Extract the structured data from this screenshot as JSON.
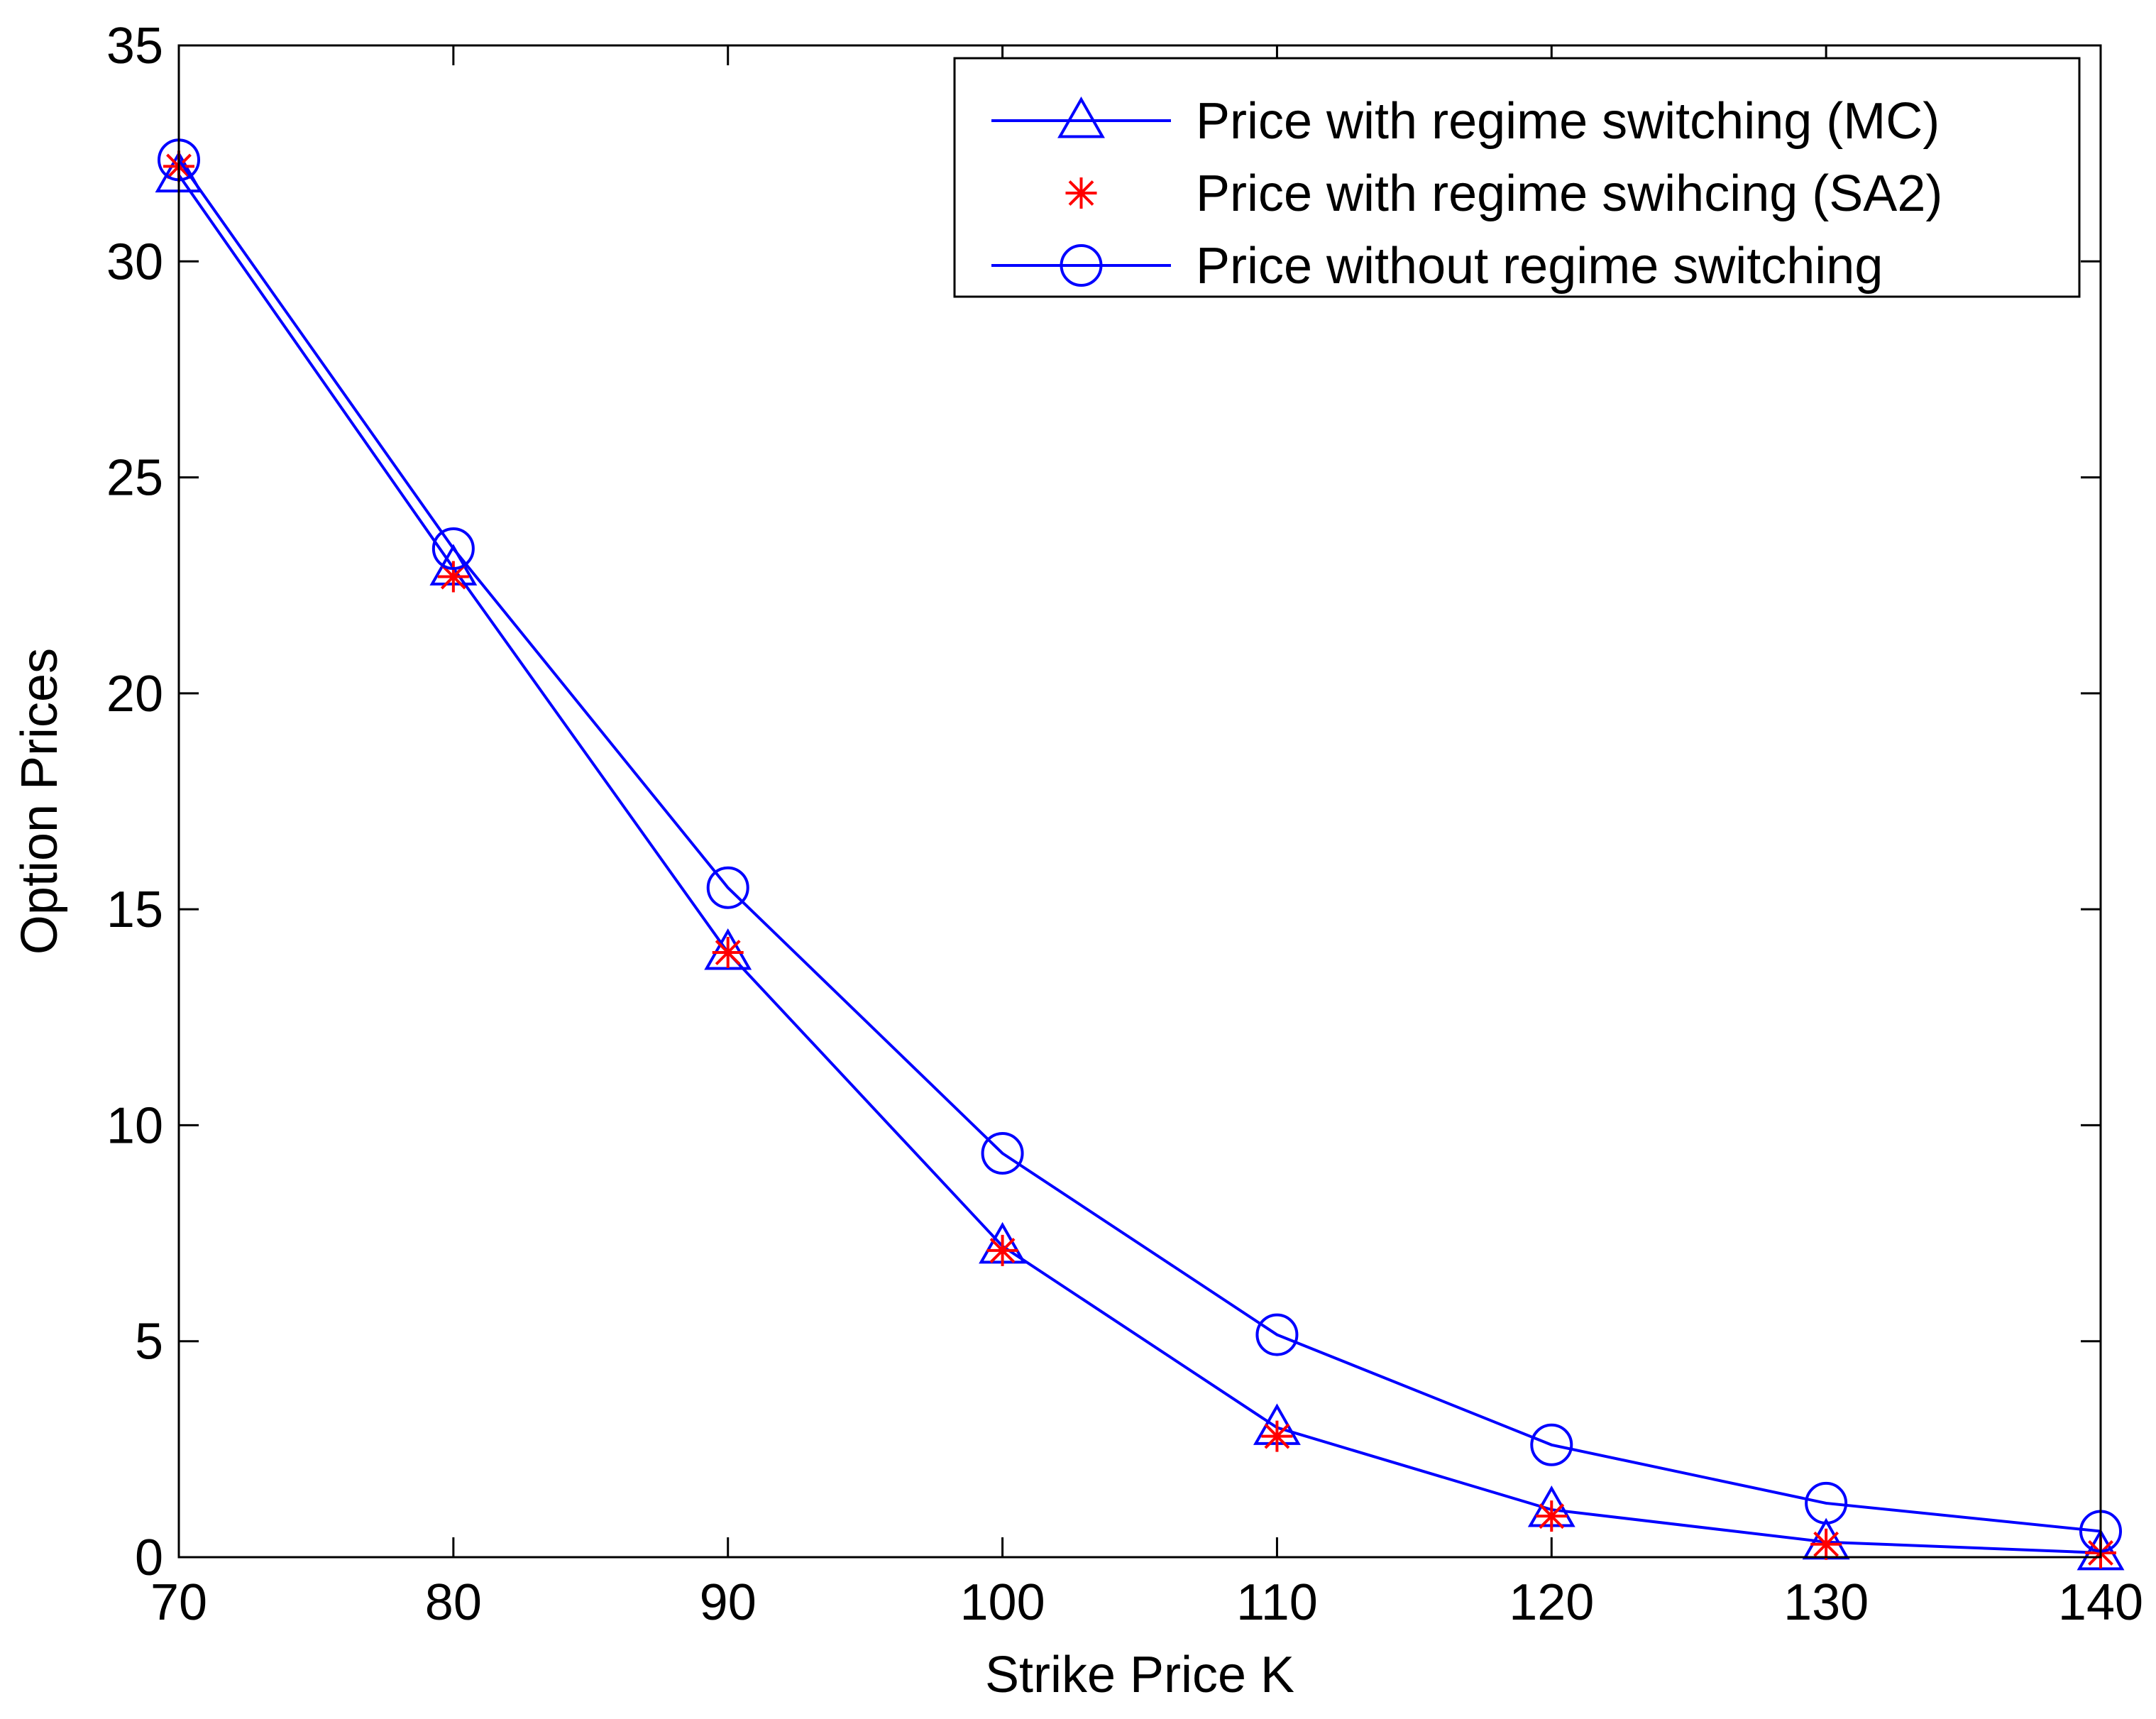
{
  "chart_data": {
    "type": "line",
    "title": "",
    "xlabel": "Strike Price K",
    "ylabel": "Option Prices",
    "xlim": [
      70,
      140
    ],
    "ylim": [
      0,
      35
    ],
    "xticks": [
      70,
      80,
      90,
      100,
      110,
      120,
      130,
      140
    ],
    "yticks": [
      0,
      5,
      10,
      15,
      20,
      25,
      30,
      35
    ],
    "grid": false,
    "legend_position": "top-right",
    "x": [
      70,
      80,
      90,
      100,
      110,
      120,
      130,
      140
    ],
    "series": [
      {
        "name": "Price with regime switching (MC)",
        "color": "#0000ff",
        "marker": "triangle",
        "line": true,
        "values": [
          32.0,
          22.9,
          14.0,
          7.2,
          3.0,
          1.1,
          0.35,
          0.1
        ]
      },
      {
        "name": "Price with regime swihcing (SA2)",
        "color": "#ff0000",
        "marker": "asterisk",
        "line": false,
        "values": [
          32.2,
          22.7,
          14.0,
          7.1,
          2.8,
          0.95,
          0.3,
          0.1
        ]
      },
      {
        "name": "Price without regime switching",
        "color": "#0000ff",
        "marker": "circle",
        "line": true,
        "values": [
          32.35,
          23.35,
          15.5,
          9.35,
          5.15,
          2.6,
          1.25,
          0.6
        ]
      }
    ]
  }
}
